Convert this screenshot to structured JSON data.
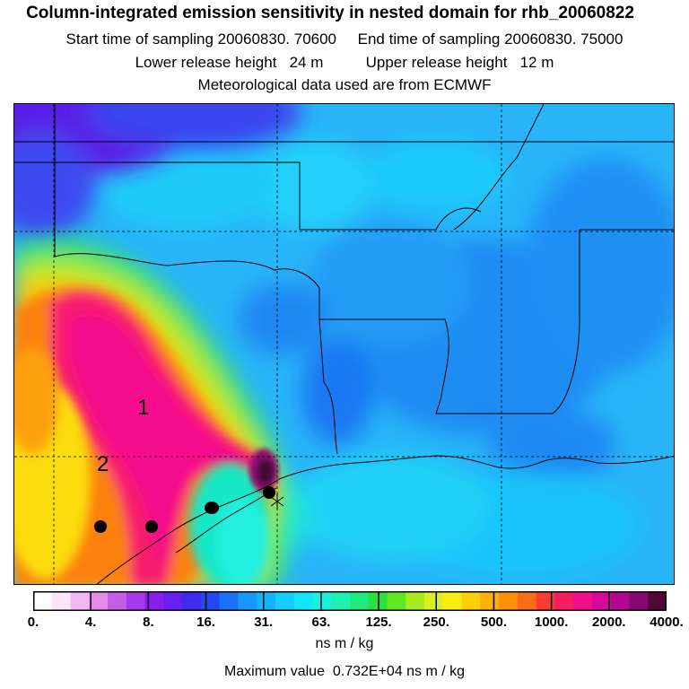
{
  "title": "Column-integrated emission sensitivity in nested domain for rhb_20060822",
  "line2": "Start time of sampling 20060830. 70600     End time of sampling 20060830. 75000",
  "line3": "Lower release height   24 m          Upper release height   12 m",
  "line4": "Meteorological data used are from ECMWF",
  "map": {
    "labels": [
      {
        "text": "1"
      },
      {
        "text": "2"
      }
    ],
    "background_color": "#2ab0f8"
  },
  "colorbar": {
    "ticks": [
      "0.",
      "4.",
      "8.",
      "16.",
      "31.",
      "63.",
      "125.",
      "250.",
      "500.",
      "1000.",
      "2000.",
      "4000."
    ],
    "colors": [
      "#ffffff",
      "#fde6f8",
      "#f2b6f0",
      "#e28ce8",
      "#c45ee6",
      "#a838ec",
      "#8a1ef0",
      "#6820f2",
      "#3c2cf0",
      "#2448f4",
      "#1c72f8",
      "#1898fc",
      "#14b4fc",
      "#14cefc",
      "#10e6f8",
      "#18f0e0",
      "#20f0b0",
      "#20e880",
      "#28e040",
      "#60e820",
      "#a8ec20",
      "#d8f020",
      "#f8ec10",
      "#fcd008",
      "#fcb008",
      "#fc9008",
      "#fc6c18",
      "#fc3c30",
      "#f81c60",
      "#f0108c",
      "#d8089c",
      "#b00890",
      "#880870",
      "#500838"
    ]
  },
  "units": "ns m / kg",
  "max_value": "Maximum value  0.732E+04 ns m / kg"
}
